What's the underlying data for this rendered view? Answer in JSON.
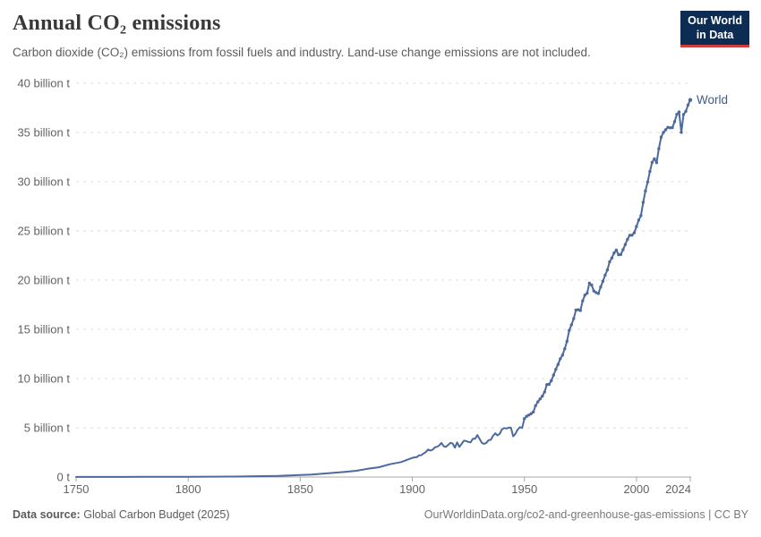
{
  "header": {
    "title": "Annual CO₂ emissions",
    "subtitle": "Carbon dioxide (CO₂) emissions from fossil fuels and industry. Land-use change emissions are not included.",
    "logo": {
      "line1": "Our World",
      "line2": "in Data",
      "bg_color": "#0d2c54",
      "bar_color": "#cf3e3e",
      "text_color": "#ffffff"
    }
  },
  "footer": {
    "source_label": "Data source:",
    "source_value": "Global Carbon Budget (2025)",
    "credit": "OurWorldinData.org/co2-and-greenhouse-gas-emissions | CC BY"
  },
  "chart_data": {
    "type": "line",
    "title": "Annual CO₂ emissions",
    "unit": "billion t",
    "xlim": [
      1750,
      2024
    ],
    "ylim": [
      0,
      40
    ],
    "xticks": [
      1750,
      1800,
      1850,
      1900,
      1950,
      2000,
      2024
    ],
    "yticks": [
      {
        "value": 0,
        "label": "0 t"
      },
      {
        "value": 5,
        "label": "5 billion t"
      },
      {
        "value": 10,
        "label": "10 billion t"
      },
      {
        "value": 15,
        "label": "15 billion t"
      },
      {
        "value": 20,
        "label": "20 billion t"
      },
      {
        "value": 25,
        "label": "25 billion t"
      },
      {
        "value": 30,
        "label": "30 billion t"
      },
      {
        "value": 35,
        "label": "35 billion t"
      },
      {
        "value": 40,
        "label": "40 billion t"
      }
    ],
    "grid": "horizontal-dashed",
    "legend_position": "end-of-line",
    "colors": {
      "line": "#4c6a9c",
      "end_label": "#3d5c8e",
      "grid": "#dcdcdc",
      "axis": "#a7a7a7",
      "tick_label": "#636363"
    },
    "series": [
      {
        "name": "World",
        "color": "#4c6a9c",
        "points": [
          [
            1750,
            0.01
          ],
          [
            1760,
            0.01
          ],
          [
            1770,
            0.01
          ],
          [
            1780,
            0.02
          ],
          [
            1790,
            0.02
          ],
          [
            1800,
            0.03
          ],
          [
            1810,
            0.04
          ],
          [
            1820,
            0.05
          ],
          [
            1830,
            0.08
          ],
          [
            1840,
            0.11
          ],
          [
            1850,
            0.2
          ],
          [
            1855,
            0.25
          ],
          [
            1860,
            0.34
          ],
          [
            1865,
            0.43
          ],
          [
            1870,
            0.53
          ],
          [
            1875,
            0.64
          ],
          [
            1880,
            0.84
          ],
          [
            1885,
            0.99
          ],
          [
            1890,
            1.3
          ],
          [
            1895,
            1.52
          ],
          [
            1900,
            1.95
          ],
          [
            1901,
            2.0
          ],
          [
            1902,
            2.03
          ],
          [
            1903,
            2.21
          ],
          [
            1904,
            2.22
          ],
          [
            1905,
            2.4
          ],
          [
            1906,
            2.54
          ],
          [
            1907,
            2.79
          ],
          [
            1908,
            2.69
          ],
          [
            1909,
            2.76
          ],
          [
            1910,
            3.01
          ],
          [
            1911,
            3.07
          ],
          [
            1912,
            3.21
          ],
          [
            1913,
            3.46
          ],
          [
            1914,
            3.13
          ],
          [
            1915,
            3.06
          ],
          [
            1916,
            3.26
          ],
          [
            1917,
            3.47
          ],
          [
            1918,
            3.4
          ],
          [
            1919,
            2.98
          ],
          [
            1920,
            3.52
          ],
          [
            1921,
            3.06
          ],
          [
            1922,
            3.36
          ],
          [
            1923,
            3.69
          ],
          [
            1924,
            3.66
          ],
          [
            1925,
            3.56
          ],
          [
            1926,
            3.52
          ],
          [
            1927,
            3.88
          ],
          [
            1928,
            3.88
          ],
          [
            1929,
            4.26
          ],
          [
            1930,
            3.86
          ],
          [
            1931,
            3.48
          ],
          [
            1932,
            3.36
          ],
          [
            1933,
            3.47
          ],
          [
            1934,
            3.75
          ],
          [
            1935,
            3.78
          ],
          [
            1936,
            4.18
          ],
          [
            1937,
            4.45
          ],
          [
            1938,
            4.23
          ],
          [
            1939,
            4.39
          ],
          [
            1940,
            4.85
          ],
          [
            1941,
            4.97
          ],
          [
            1942,
            4.93
          ],
          [
            1943,
            5.02
          ],
          [
            1944,
            5.01
          ],
          [
            1945,
            4.14
          ],
          [
            1946,
            4.39
          ],
          [
            1947,
            4.83
          ],
          [
            1948,
            5.06
          ],
          [
            1949,
            4.98
          ],
          [
            1950,
            5.93
          ],
          [
            1951,
            6.17
          ],
          [
            1952,
            6.29
          ],
          [
            1953,
            6.44
          ],
          [
            1954,
            6.61
          ],
          [
            1955,
            7.25
          ],
          [
            1956,
            7.65
          ],
          [
            1957,
            7.94
          ],
          [
            1958,
            8.22
          ],
          [
            1959,
            8.65
          ],
          [
            1960,
            9.39
          ],
          [
            1961,
            9.42
          ],
          [
            1962,
            9.78
          ],
          [
            1963,
            10.35
          ],
          [
            1964,
            10.94
          ],
          [
            1965,
            11.44
          ],
          [
            1966,
            12.01
          ],
          [
            1967,
            12.38
          ],
          [
            1968,
            13.03
          ],
          [
            1969,
            13.79
          ],
          [
            1970,
            14.9
          ],
          [
            1971,
            15.46
          ],
          [
            1972,
            16.09
          ],
          [
            1973,
            16.96
          ],
          [
            1974,
            16.99
          ],
          [
            1975,
            16.92
          ],
          [
            1976,
            17.89
          ],
          [
            1977,
            18.48
          ],
          [
            1978,
            18.67
          ],
          [
            1979,
            19.7
          ],
          [
            1980,
            19.5
          ],
          [
            1981,
            18.9
          ],
          [
            1982,
            18.74
          ],
          [
            1983,
            18.65
          ],
          [
            1984,
            19.3
          ],
          [
            1985,
            19.88
          ],
          [
            1986,
            20.51
          ],
          [
            1987,
            21.04
          ],
          [
            1988,
            21.85
          ],
          [
            1989,
            22.25
          ],
          [
            1990,
            22.76
          ],
          [
            1991,
            23.05
          ],
          [
            1992,
            22.58
          ],
          [
            1993,
            22.61
          ],
          [
            1994,
            23.09
          ],
          [
            1995,
            23.62
          ],
          [
            1996,
            24.15
          ],
          [
            1997,
            24.55
          ],
          [
            1998,
            24.56
          ],
          [
            1999,
            24.81
          ],
          [
            2000,
            25.45
          ],
          [
            2001,
            26.1
          ],
          [
            2002,
            26.55
          ],
          [
            2003,
            27.9
          ],
          [
            2004,
            29.05
          ],
          [
            2005,
            29.97
          ],
          [
            2006,
            31.04
          ],
          [
            2007,
            31.96
          ],
          [
            2008,
            32.33
          ],
          [
            2009,
            31.94
          ],
          [
            2010,
            33.35
          ],
          [
            2011,
            34.53
          ],
          [
            2012,
            35.0
          ],
          [
            2013,
            35.27
          ],
          [
            2014,
            35.52
          ],
          [
            2015,
            35.47
          ],
          [
            2016,
            35.49
          ],
          [
            2017,
            36.1
          ],
          [
            2018,
            36.84
          ],
          [
            2019,
            37.08
          ],
          [
            2020,
            35.01
          ],
          [
            2021,
            36.83
          ],
          [
            2022,
            37.15
          ],
          [
            2023,
            37.79
          ],
          [
            2024,
            38.3
          ]
        ]
      }
    ]
  }
}
